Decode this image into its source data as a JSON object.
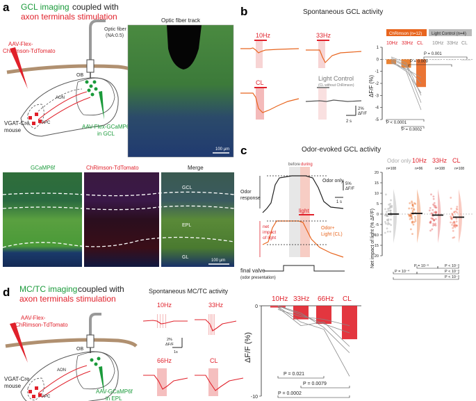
{
  "colors": {
    "red": "#e0202a",
    "orange": "#e8651e",
    "green": "#1a9a3a",
    "grey": "#888888",
    "lightred": "#f4b8b8",
    "lightorange": "#f7c5a8"
  },
  "panel_a": {
    "label": "a",
    "title_green": "GCL imaging",
    "title_black": " coupled with",
    "title_red": "axon terminals stimulation",
    "virus_red": [
      "AAV-Flex-",
      "ChRimson-TdTomato"
    ],
    "optic_fiber": [
      "Optic fiber",
      "(NA:0.5)"
    ],
    "ob": "OB",
    "aon": "AON",
    "apc": "APC",
    "mouse": [
      "VGAT-Cre",
      "mouse"
    ],
    "virus_green": [
      "AAV-Flex-GCaMP6f",
      "in GCL"
    ],
    "micro_title": "Optic fiber track",
    "scale": "100 µm",
    "row_titles": [
      "GCaMP6f",
      "ChRimson-TdTomato",
      "Merge"
    ],
    "layers": [
      "GCL",
      "EPL",
      "GL"
    ],
    "scale2": "100 µm"
  },
  "panel_b": {
    "label": "b",
    "title": "Spontaneous GCL activity",
    "traces": [
      "10Hz",
      "33Hz",
      "CL",
      "Light Control"
    ],
    "light_control_sub": "(CL without ChRimson)",
    "scale_y": "2%",
    "scale_y_unit": "ΔF/F",
    "scale_x": "2 s",
    "legend_chrimson": "ChRimson (n=12)",
    "legend_control": "Light Control (n=4)",
    "groups": [
      "10Hz",
      "33Hz",
      "CL",
      "10Hz",
      "33Hz",
      "CL"
    ],
    "ylabel": "ΔF/F (%)",
    "yticks": [
      "1",
      "0",
      "-1",
      "-2",
      "-3",
      "-4",
      "-5"
    ],
    "pvals": [
      "P = 0.001",
      "P = 0.009",
      "P < 0.0001",
      "P = 0.0002"
    ]
  },
  "panel_c": {
    "label": "c",
    "title": "Odor-evoked GCL activity",
    "before": "before",
    "during": "during",
    "odor_only": "Odor only",
    "light": "light",
    "odor_resp": [
      "Odor",
      "response"
    ],
    "net_impact": [
      "net",
      "impact",
      "of light"
    ],
    "odor_light": [
      "Odor+",
      "Light (CL)"
    ],
    "scale_y": "5%",
    "scale_y_unit": "ΔF/F",
    "scale_x": "1 s",
    "final_valve": [
      "final valve",
      "(odor presentation)"
    ],
    "groups": [
      "Odor only",
      "10Hz",
      "33Hz",
      "CL"
    ],
    "ns": [
      "n=108",
      "n=96",
      "n=108",
      "n=108"
    ],
    "ylabel": "Net impact of light (% ΔF/F)",
    "yticks": [
      "20",
      "15",
      "10",
      "5",
      "0",
      "-5",
      "-10",
      "-15",
      "-20"
    ],
    "pvals": [
      "P = 10⁻⁶",
      "P < 10⁻⁹",
      "P = 10⁻⁴",
      "P < 10⁻⁹",
      "P < 10⁻⁹"
    ]
  },
  "panel_d": {
    "label": "d",
    "title_green": "MC/TC imaging",
    "title_black": " coupled with",
    "title_red": "axon terminals stimulation",
    "virus_red": [
      "AAV-Flex-",
      "ChRimson-TdTomato"
    ],
    "ob": "OB",
    "aon": "AON",
    "apc": "APC",
    "mouse": [
      "VGAT-Cre",
      "mouse"
    ],
    "virus_green": [
      "AAV-GCaMP6f",
      "in EPL"
    ],
    "trace_title": "Spontaneous MC/TC activity",
    "traces": [
      "10Hz",
      "33Hz",
      "66Hz",
      "CL"
    ],
    "scale_y": "2%",
    "scale_y_unit": "ΔF/F",
    "scale_x": "1s",
    "groups": [
      "10Hz",
      "33Hz",
      "66Hz",
      "CL"
    ],
    "ylabel": "ΔF/F (%)",
    "yticks": [
      "0",
      "-10"
    ],
    "pvals": [
      "P = 0.021",
      "P = 0.0079",
      "P = 0.0002"
    ]
  },
  "chart_data": [
    {
      "type": "bar",
      "panel": "b",
      "categories": [
        "10Hz",
        "33Hz",
        "CL",
        "10Hz",
        "33Hz",
        "CL"
      ],
      "values": [
        -0.4,
        -0.7,
        -2.3,
        0.0,
        -0.05,
        -0.1
      ],
      "ylabel": "ΔF/F (%)",
      "ylim": [
        -5,
        1
      ]
    },
    {
      "type": "scatter",
      "panel": "c",
      "categories": [
        "Odor only",
        "10Hz",
        "33Hz",
        "CL"
      ],
      "medians": [
        0,
        0.3,
        -0.5,
        -1.5
      ],
      "ylabel": "Net impact of light (% ΔF/F)",
      "ylim": [
        -20,
        20
      ]
    },
    {
      "type": "bar",
      "panel": "d",
      "categories": [
        "10Hz",
        "33Hz",
        "66Hz",
        "CL"
      ],
      "values": [
        -0.2,
        -1.5,
        -2.0,
        -3.7
      ],
      "ylabel": "ΔF/F (%)",
      "ylim": [
        -10,
        0
      ]
    }
  ]
}
